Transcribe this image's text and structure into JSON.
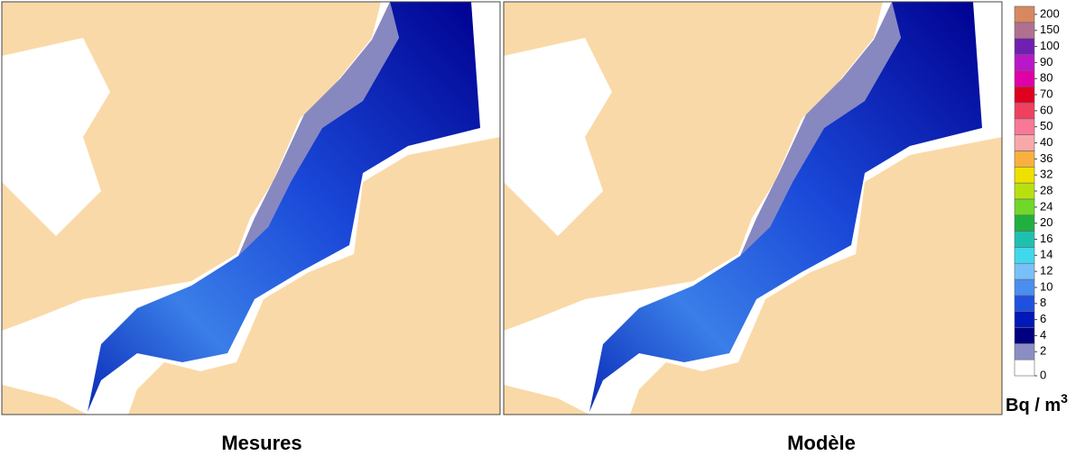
{
  "panels": [
    {
      "caption": "Mesures"
    },
    {
      "caption": "Modèle"
    }
  ],
  "legend": {
    "unit": "Bq / m",
    "unit_exponent": "3",
    "levels": [
      0,
      2,
      4,
      6,
      8,
      10,
      12,
      14,
      16,
      20,
      24,
      28,
      32,
      36,
      40,
      50,
      60,
      70,
      80,
      90,
      100,
      150,
      200
    ],
    "colors": [
      "#ffffff",
      "#8a8ec4",
      "#000080",
      "#0018b8",
      "#1f50e0",
      "#4a8ef0",
      "#78c0f8",
      "#40d8ec",
      "#20c0b0",
      "#20b040",
      "#70d828",
      "#b8e010",
      "#f0e000",
      "#f8b040",
      "#f8a8a8",
      "#f87898",
      "#f04060",
      "#e00020",
      "#e000a8",
      "#b818c8",
      "#7020b0",
      "#b07090",
      "#d88860",
      "#fff6c8"
    ]
  }
}
